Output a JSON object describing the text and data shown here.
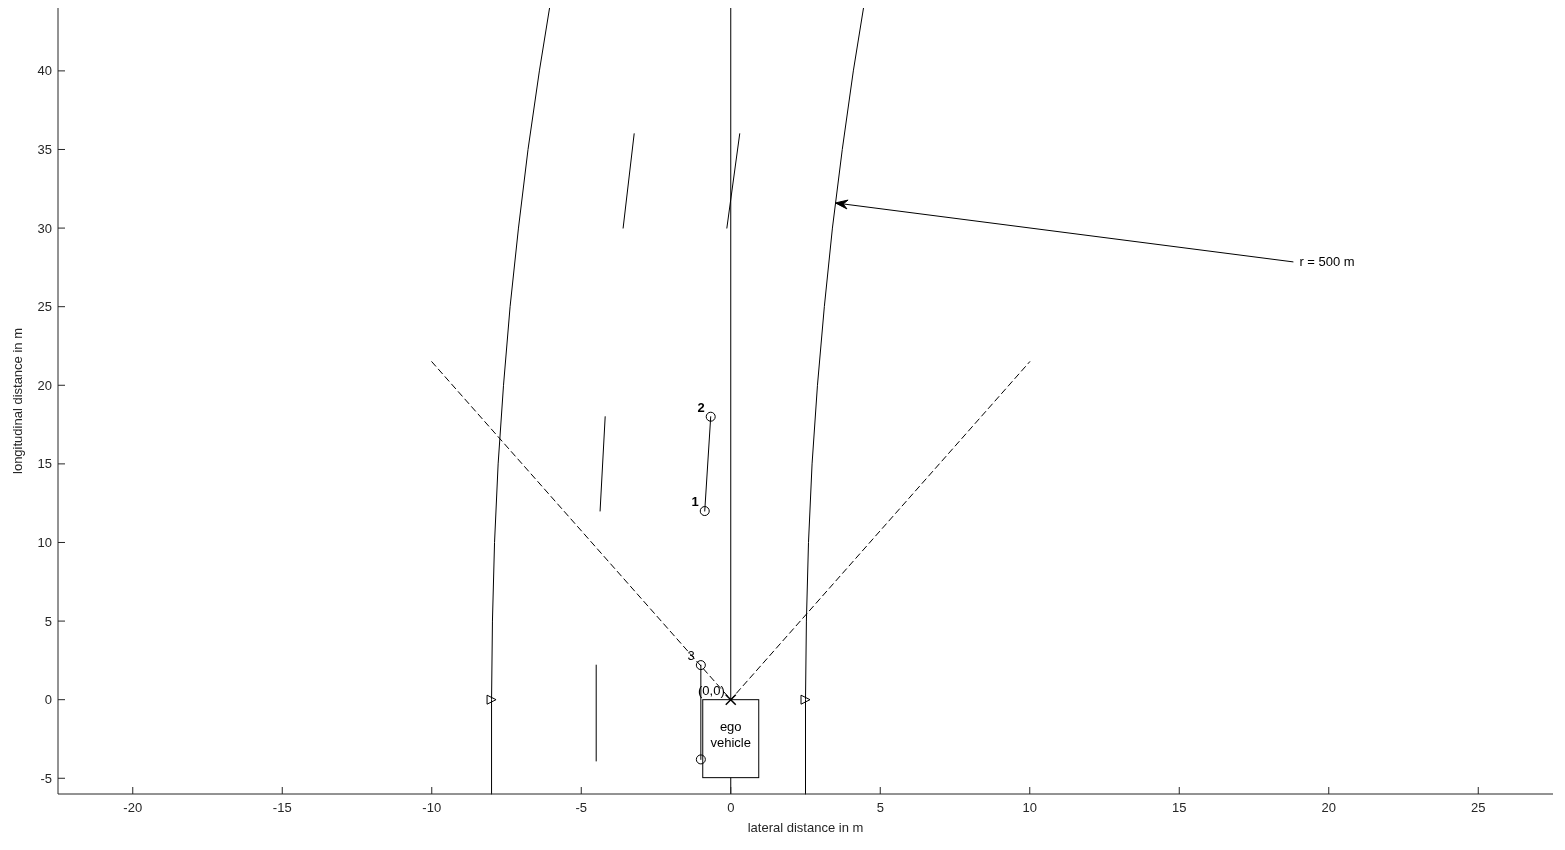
{
  "chart_data": {
    "type": "line",
    "xlabel": "lateral distance in m",
    "ylabel": "longitudinal distance in m",
    "xlim": [
      -22.5,
      27.5
    ],
    "ylim": [
      -6,
      44
    ],
    "xticks": [
      -20,
      -15,
      -10,
      -5,
      0,
      5,
      10,
      15,
      20,
      25
    ],
    "yticks": [
      -5,
      0,
      5,
      10,
      15,
      20,
      25,
      30,
      35,
      40
    ],
    "ref_lines": [
      {
        "axis": "x",
        "value": 0,
        "color": "#000000"
      }
    ],
    "series": [
      {
        "color": "#000000",
        "x": [
          -8,
          -8,
          -7.97,
          -7.9,
          -7.78,
          -7.6,
          -7.38,
          -7.1,
          -6.78,
          -6.4,
          -6.06
        ],
        "values": [
          -6,
          0,
          5,
          10,
          15,
          20,
          25,
          30,
          35,
          40,
          44
        ]
      },
      {
        "color": "#000000",
        "x": [
          2.5,
          2.5,
          2.53,
          2.6,
          2.72,
          2.9,
          3.13,
          3.4,
          3.73,
          4.1,
          4.44
        ],
        "values": [
          -6,
          0,
          5,
          10,
          15,
          20,
          25,
          30,
          35,
          40,
          44
        ]
      },
      {
        "color": "#000000",
        "x": [
          -4.5,
          -4.5
        ],
        "values": [
          -3.9,
          2.2
        ]
      },
      {
        "color": "#000000",
        "x": [
          -4.37,
          -4.2
        ],
        "values": [
          12,
          18
        ]
      },
      {
        "color": "#000000",
        "x": [
          -3.6,
          -3.23
        ],
        "values": [
          30,
          36
        ]
      },
      {
        "color": "#000000",
        "x": [
          -0.13,
          0.3
        ],
        "values": [
          30,
          36
        ]
      },
      {
        "type": "bar",
        "color": "#000000",
        "x": [
          0
        ],
        "values": [
          -4.96
        ]
      },
      {
        "color": "#000000",
        "marker": "circle",
        "x": [
          -0.87,
          -0.67
        ],
        "values": [
          12,
          18
        ]
      },
      {
        "color": "#000000",
        "marker": "circle",
        "x": [
          -1,
          -1
        ],
        "values": [
          2.2,
          -3.8
        ]
      },
      {
        "color": "#000000",
        "line_style": "dashed",
        "x": [
          -10,
          0,
          10
        ],
        "values": [
          21.5,
          0,
          21.5
        ]
      },
      {
        "type": "scatter",
        "color": "#000000",
        "marker": "triangle",
        "x": [
          -8,
          2.5
        ],
        "values": [
          0,
          0
        ]
      },
      {
        "type": "scatter",
        "color": "#000000",
        "marker": "cross",
        "x": [
          0
        ],
        "values": [
          0
        ]
      }
    ],
    "annotations": [
      {
        "text": "r = 500 m",
        "x": 3.5,
        "y": 31.6
      },
      "ego vehicle",
      {
        "text": "(0,0)",
        "x": 0,
        "y": 0
      },
      {
        "text": "1",
        "x": -0.87,
        "y": 12
      },
      {
        "text": "2",
        "x": -0.67,
        "y": 18
      },
      {
        "text": "3",
        "x": -1,
        "y": 2.2
      }
    ]
  }
}
